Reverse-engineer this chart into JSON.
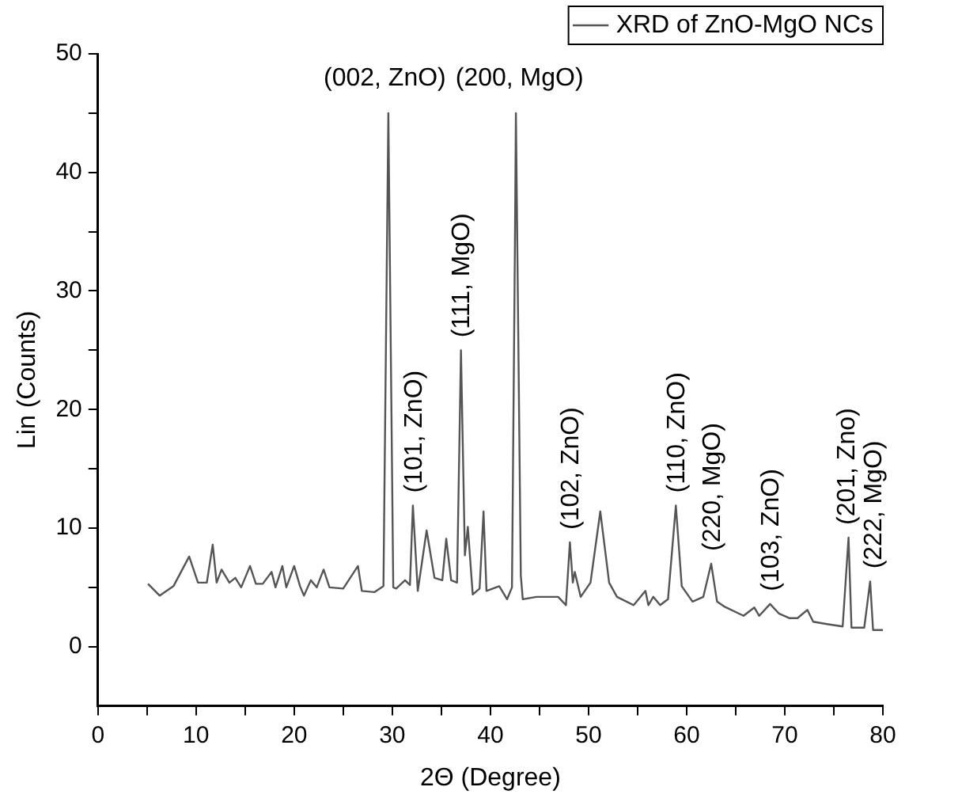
{
  "chart_data": {
    "type": "line",
    "xlabel": "2Θ (Degree)",
    "ylabel": "Lin (Counts)",
    "xlim": [
      0,
      80
    ],
    "xticks": [
      0,
      {
        "value": 5,
        "label": null
      },
      10,
      {
        "value": 15,
        "label": null
      },
      20,
      {
        "value": 25,
        "label": null
      },
      30,
      {
        "value": 35,
        "label": null
      },
      40,
      {
        "value": 45,
        "label": null
      },
      50,
      {
        "value": 55,
        "label": null
      },
      60,
      {
        "value": 65,
        "label": null
      },
      70,
      {
        "value": 75,
        "label": null
      },
      80
    ],
    "ylim": [
      -5,
      50
    ],
    "yticks": [
      0,
      {
        "value": 5,
        "label": null
      },
      10,
      {
        "value": 15,
        "label": null
      },
      20,
      {
        "value": 25,
        "label": null
      },
      30,
      {
        "value": 35,
        "label": null
      },
      40,
      {
        "value": 45,
        "label": null
      },
      50
    ],
    "grid": false,
    "legend": "top right",
    "marker": "none",
    "line_style": "solid",
    "series": [
      {
        "name": "XRD of ZnO-MgO NCs",
        "color": "#555555",
        "x": [
          5.1,
          6.3,
          7.7,
          9.3,
          10.2,
          11.1,
          11.7,
          12.1,
          12.6,
          13.4,
          14,
          14.6,
          15.5,
          16.1,
          16.8,
          17.7,
          18.1,
          18.8,
          19.2,
          20,
          20.6,
          21,
          21.7,
          22.3,
          23,
          23.6,
          25,
          26.5,
          26.9,
          28.2,
          29.1,
          29.6,
          30.1,
          30.4,
          31.3,
          31.8,
          32.1,
          32.6,
          33.5,
          34.3,
          35.1,
          35.5,
          36,
          36.6,
          37,
          37.4,
          37.7,
          38.2,
          38.9,
          39.3,
          39.6,
          40.9,
          41.7,
          42.2,
          42.5,
          42.6,
          43.1,
          43.3,
          44.7,
          46.9,
          47.7,
          48.1,
          48.4,
          48.6,
          49.2,
          50.2,
          51.2,
          52.1,
          52.9,
          54.6,
          55.8,
          56.1,
          56.6,
          57.3,
          58.1,
          58.9,
          59.5,
          60.6,
          61.7,
          62.5,
          63.1,
          63.8,
          65.8,
          66.9,
          67.4,
          68.5,
          69.4,
          70.5,
          71.3,
          72.3,
          72.9,
          74.3,
          75.9,
          76.5,
          76.8,
          78.1,
          78.7,
          79,
          80
        ],
        "values": [
          5.3,
          4.3,
          5.1,
          7.6,
          5.4,
          5.4,
          8.6,
          5.4,
          6.5,
          5.4,
          5.8,
          5,
          6.8,
          5.3,
          5.3,
          6.3,
          5,
          6.8,
          5,
          6.8,
          5.1,
          4.3,
          5.6,
          5,
          6.5,
          5,
          4.9,
          6.8,
          4.7,
          4.6,
          5.1,
          45,
          5,
          4.9,
          5.6,
          5.2,
          11.9,
          4.7,
          9.8,
          5.8,
          5.6,
          9.1,
          5.6,
          5.4,
          25,
          7.7,
          10.1,
          4.4,
          4.9,
          11.4,
          4.7,
          5.1,
          4,
          5,
          34,
          45,
          6,
          4,
          4.2,
          4.2,
          3.5,
          8.8,
          5.4,
          6.3,
          4.2,
          5.4,
          11.4,
          5.4,
          4.2,
          3.5,
          4.7,
          3.5,
          4.2,
          3.5,
          4,
          11.9,
          5.1,
          3.8,
          4.2,
          7,
          3.8,
          3.4,
          2.6,
          3.3,
          2.6,
          3.6,
          2.8,
          2.4,
          2.4,
          3.1,
          2.1,
          1.9,
          1.7,
          9.2,
          1.6,
          1.6,
          5.5,
          1.4,
          1.4
        ]
      }
    ],
    "annotations": [
      {
        "text": "(002, ZnO)",
        "x": 29.6,
        "y": 45
      },
      {
        "text": "(101, ZnO)",
        "x": 32.1,
        "y": 11.9
      },
      {
        "text": "(111, MgO)",
        "x": 37,
        "y": 25
      },
      {
        "text": "(200, MgO)",
        "x": 42.6,
        "y": 45
      },
      {
        "text": "(102, ZnO)",
        "x": 48.1,
        "y": 8.8
      },
      {
        "text": "(110, ZnO)",
        "x": 58.9,
        "y": 11.9
      },
      {
        "text": "(220, MgO)",
        "x": 62.5,
        "y": 7
      },
      {
        "text": "(103, ZnO)",
        "x": 68.5,
        "y": 3.6
      },
      {
        "text": "(201, Zno)",
        "x": 76.5,
        "y": 9.2
      },
      {
        "text": "(222, MgO)",
        "x": 78.7,
        "y": 5.5
      }
    ]
  }
}
